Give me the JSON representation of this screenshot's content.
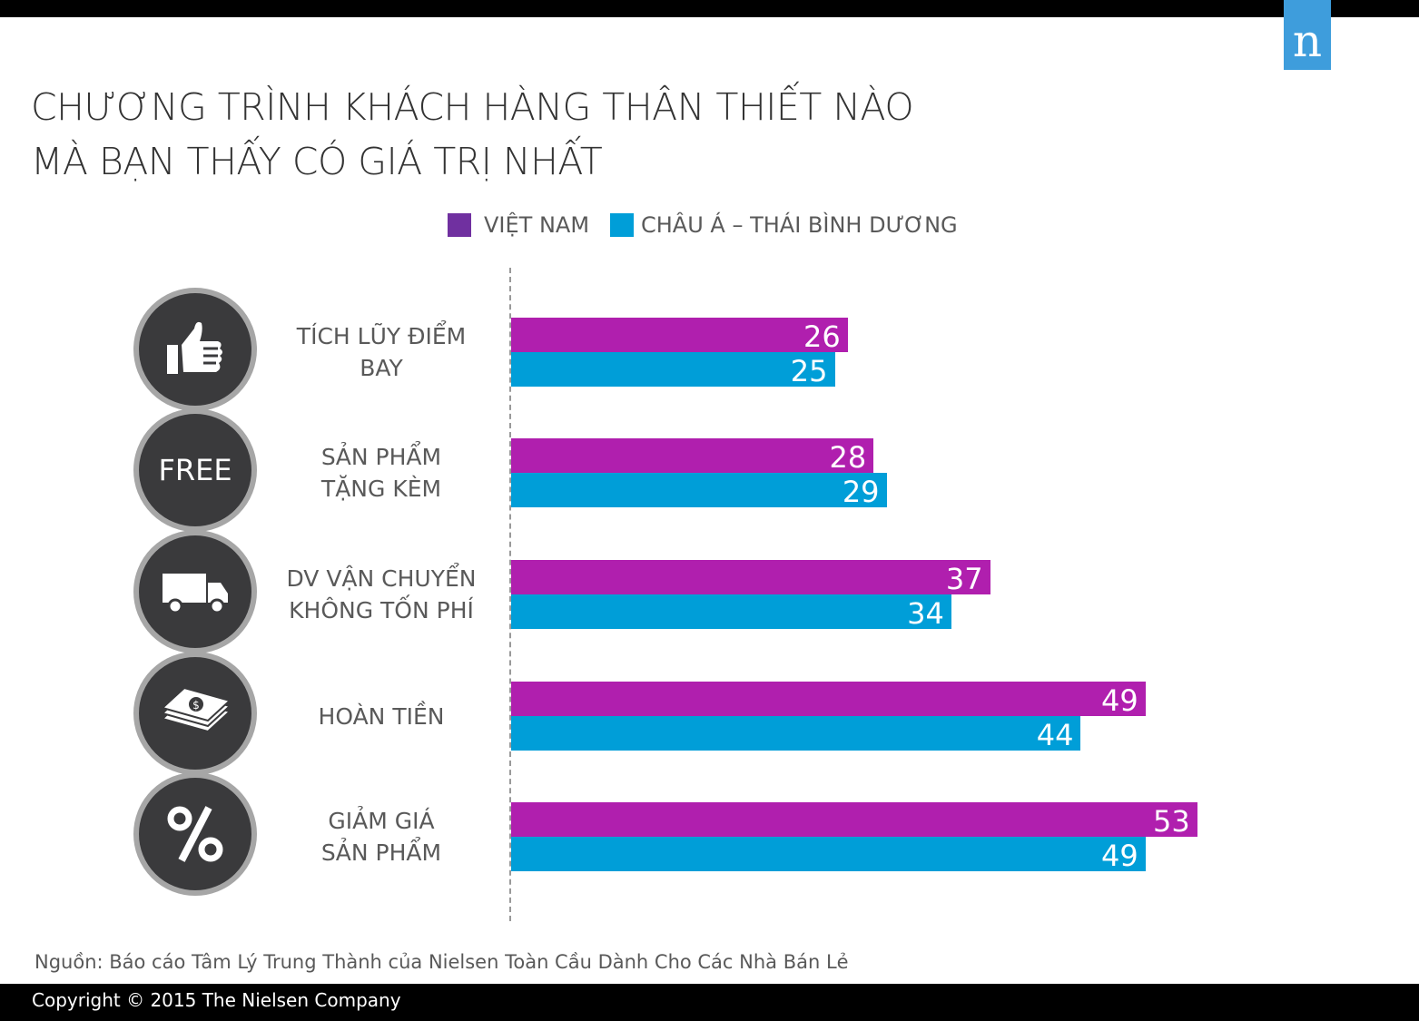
{
  "title": [
    "CHƯƠNG TRÌNH KHÁCH HÀNG THÂN THIẾT NÀO",
    "MÀ BẠN THẤY CÓ GIÁ TRỊ NHẤT"
  ],
  "logo": "n",
  "chart_data": {
    "type": "bar",
    "orientation": "horizontal",
    "categories": [
      "TÍCH LŨY ĐIỂM BAY",
      "SẢN PHẨM TẶNG KÈM",
      "DV VẬN CHUYỂN KHÔNG TỐN PHÍ",
      "HOÀN TIỀN",
      "GIẢM GIÁ SẢN PHẨM"
    ],
    "category_lines": [
      [
        "TÍCH LŨY ĐIỂM",
        "BAY"
      ],
      [
        "SẢN PHẨM",
        "TẶNG KÈM"
      ],
      [
        "DV VẬN CHUYỂN",
        "KHÔNG TỐN PHÍ"
      ],
      [
        "HOÀN TIỀN"
      ],
      [
        "GIẢM GIÁ",
        "SẢN PHẨM"
      ]
    ],
    "icons": [
      "thumbs-up-icon",
      "free-icon",
      "truck-icon",
      "money-icon",
      "percent-icon"
    ],
    "icon_text": {
      "free": "FREE"
    },
    "series": [
      {
        "name": "VIỆT NAM",
        "values": [
          26,
          28,
          37,
          49,
          53
        ],
        "color": "#b01fae",
        "legend_color": "#7030a0"
      },
      {
        "name": "CHÂU Á – THÁI BÌNH DƯƠNG",
        "values": [
          25,
          29,
          34,
          44,
          49
        ],
        "color": "#009ed8",
        "legend_color": "#009ed8"
      }
    ],
    "legend_position": "top",
    "grid": false
  },
  "source": "Nguồn: Báo cáo Tâm Lý Trung Thành của Nielsen Toàn Cầu Dành Cho Các Nhà Bán Lẻ",
  "footer": "Copyright © 2015 The Nielsen Company"
}
